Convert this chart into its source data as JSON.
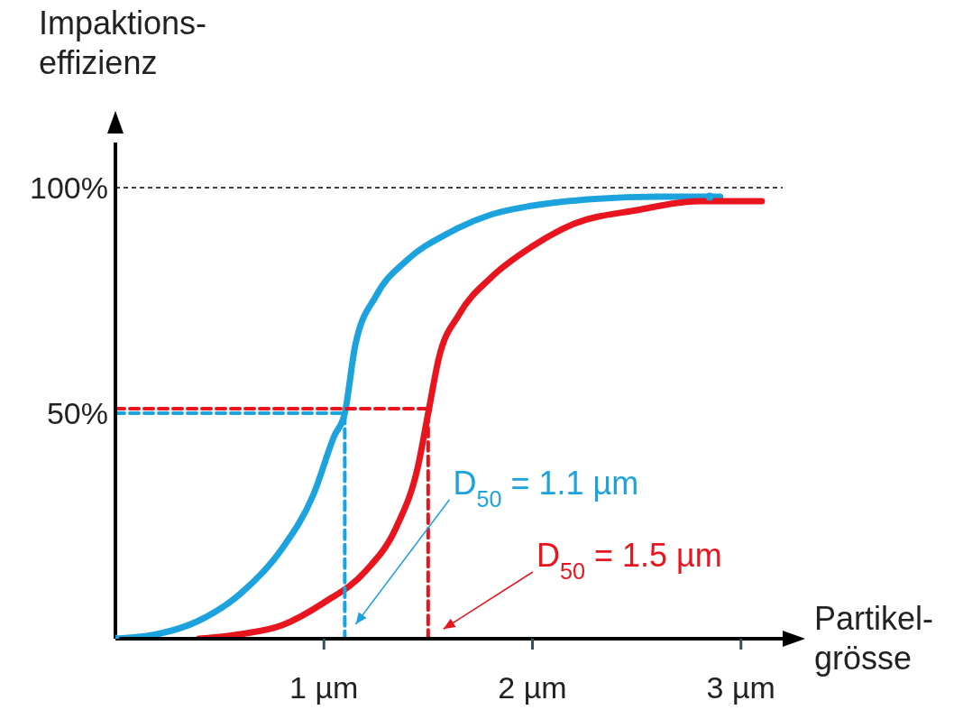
{
  "chart_data": {
    "type": "line",
    "xlabel": "Partikel-grösse",
    "ylabel": "Impaktions-effizienz",
    "xlim": [
      0,
      3.2
    ],
    "xticks": [
      {
        "value": 1,
        "label": "1 µm"
      },
      {
        "value": 2,
        "label": "2 µm"
      },
      {
        "value": 3,
        "label": "3 µm"
      }
    ],
    "ylim": [
      0,
      110
    ],
    "yticks": [
      {
        "value": 50,
        "label": "50%"
      },
      {
        "value": 100,
        "label": "100%"
      }
    ],
    "grid": false,
    "line_style": "solid",
    "series": [
      {
        "color": "#1ca3dd",
        "x": [
          0,
          0.2,
          0.4,
          0.6,
          0.8,
          0.95,
          1.05,
          1.1,
          1.15,
          1.25,
          1.4,
          1.6,
          1.8,
          2.0,
          2.3,
          2.6,
          2.9
        ],
        "values": [
          0,
          1,
          4,
          10,
          20,
          32,
          45,
          50,
          65,
          76,
          84,
          90,
          94,
          96,
          97.5,
          98,
          98
        ]
      },
      {
        "color": "#e8141e",
        "x": [
          0.4,
          0.6,
          0.8,
          1.0,
          1.2,
          1.35,
          1.45,
          1.5,
          1.55,
          1.65,
          1.8,
          2.0,
          2.2,
          2.5,
          2.8,
          3.1
        ],
        "values": [
          0,
          1,
          3,
          8,
          15,
          25,
          38,
          50,
          62,
          72,
          80,
          87,
          92,
          95,
          97,
          97
        ]
      },
      {
        "type": "line",
        "line_style": "dashed",
        "color": "#1ca3dd",
        "x": [
          0,
          1.1,
          1.1
        ],
        "values": [
          50,
          50,
          0
        ]
      },
      {
        "type": "line",
        "line_style": "dashed",
        "color": "#e8141e",
        "x": [
          0,
          1.5,
          1.5
        ],
        "values": [
          51,
          51,
          0
        ]
      },
      {
        "type": "scatter",
        "marker": "circle",
        "color": "#1ca3dd",
        "x": [
          0,
          2.85
        ],
        "values": [
          0,
          98
        ]
      }
    ],
    "ref_lines": [
      {
        "axis": "y",
        "value": 100,
        "line_style": "dashed",
        "color": "#000000"
      }
    ],
    "annotations": [
      "D$_{50}$ = 1.1 µm",
      "D$_{50}$ = 1.5 µm"
    ]
  }
}
